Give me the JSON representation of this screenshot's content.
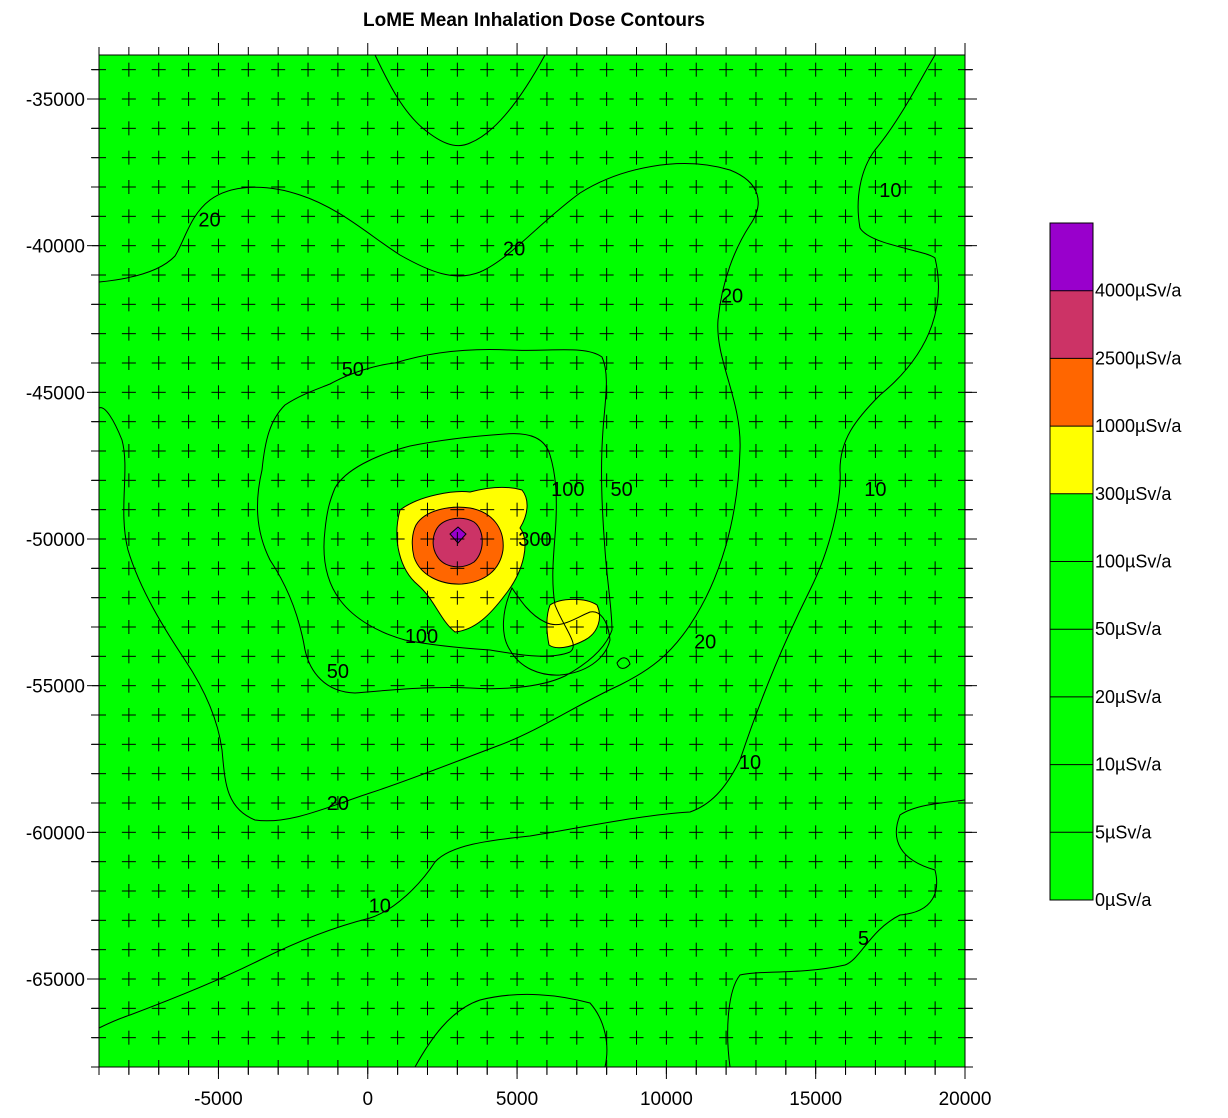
{
  "chart_data": {
    "type": "contour",
    "title": "LoME Mean Inhalation Dose Contours",
    "xlabel": "",
    "ylabel": "",
    "xlim": [
      -9000,
      20000
    ],
    "ylim": [
      -68000,
      -33500
    ],
    "x_ticks": [
      -5000,
      0,
      5000,
      10000,
      15000,
      20000
    ],
    "x_tick_labels": [
      "-5000",
      "0",
      "5000",
      "10000",
      "15000",
      "20000"
    ],
    "y_ticks": [
      -35000,
      -40000,
      -45000,
      -50000,
      -55000,
      -60000,
      -65000
    ],
    "y_tick_labels": [
      "-35000",
      "-40000",
      "-45000",
      "-50000",
      "-55000",
      "-60000",
      "-65000"
    ],
    "grid_markers": "plus-crosses",
    "legend": {
      "placement": "right",
      "levels": [
        {
          "label": "0µSv/a",
          "color": "#00ff00"
        },
        {
          "label": "5µSv/a",
          "color": "#00ff00"
        },
        {
          "label": "10µSv/a",
          "color": "#00ff00"
        },
        {
          "label": "20µSv/a",
          "color": "#00ff00"
        },
        {
          "label": "50µSv/a",
          "color": "#00ff00"
        },
        {
          "label": "100µSv/a",
          "color": "#00ff00"
        },
        {
          "label": "300µSv/a",
          "color": "#ffff00"
        },
        {
          "label": "1000µSv/a",
          "color": "#ff6600"
        },
        {
          "label": "2500µSv/a",
          "color": "#cc3366"
        },
        {
          "label": "4000µSv/a",
          "color": "#9900cc"
        }
      ]
    },
    "contour_labels": [
      {
        "text": "20",
        "x": -5300,
        "y": -39100
      },
      {
        "text": "20",
        "x": 4900,
        "y": -40100
      },
      {
        "text": "20",
        "x": 12200,
        "y": -41700
      },
      {
        "text": "10",
        "x": 17500,
        "y": -38100
      },
      {
        "text": "50",
        "x": -500,
        "y": -44200
      },
      {
        "text": "100",
        "x": 6700,
        "y": -48300
      },
      {
        "text": "50",
        "x": 8500,
        "y": -48300
      },
      {
        "text": "10",
        "x": 17000,
        "y": -48300
      },
      {
        "text": "300",
        "x": 5600,
        "y": -50000
      },
      {
        "text": "100",
        "x": 1800,
        "y": -53300
      },
      {
        "text": "50",
        "x": -1000,
        "y": -54500
      },
      {
        "text": "20",
        "x": 11300,
        "y": -53500
      },
      {
        "text": "10",
        "x": 12800,
        "y": -57600
      },
      {
        "text": "20",
        "x": -1000,
        "y": -59000
      },
      {
        "text": "10",
        "x": 400,
        "y": -62500
      },
      {
        "text": "5",
        "x": 16600,
        "y": -63600
      }
    ]
  }
}
